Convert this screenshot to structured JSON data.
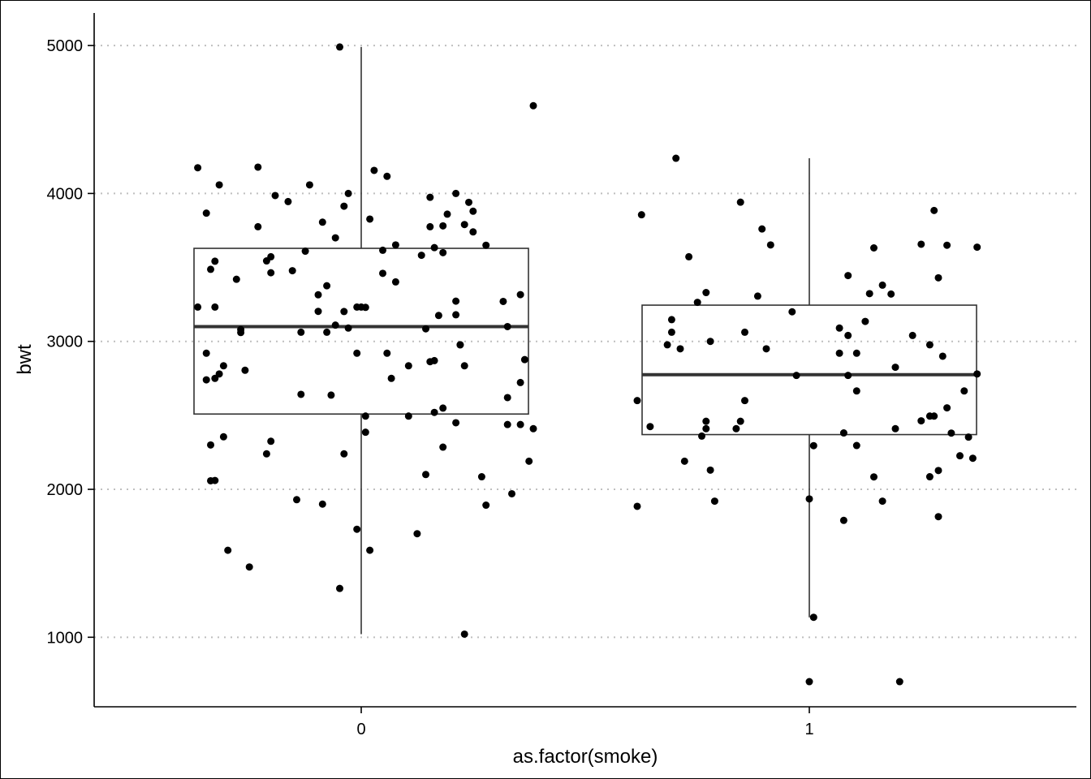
{
  "chart_data": {
    "type": "boxplot",
    "xlabel": "as.factor(smoke)",
    "ylabel": "bwt",
    "categories": [
      "0",
      "1"
    ],
    "ylim": [
      530,
      5220
    ],
    "yticks": [
      1000,
      2000,
      3000,
      4000,
      5000
    ],
    "grid": "horizontal-dotted",
    "legend": "none",
    "colors": {
      "points": "#000000",
      "box": "#333333",
      "grid": "#bfbfbf"
    },
    "boxes": [
      {
        "category": "0",
        "min": 1021,
        "q1": 2509,
        "median": 3100,
        "q3": 3629,
        "max": 4990
      },
      {
        "category": "1",
        "min": 1135,
        "q1": 2370,
        "median": 2775,
        "q3": 3245,
        "max": 4238
      }
    ],
    "points": [
      {
        "category": "0",
        "values": [
          [
            -0.38,
            4174
          ],
          [
            -0.38,
            3232
          ],
          [
            -0.36,
            3867
          ],
          [
            -0.35,
            3487
          ],
          [
            -0.34,
            3542
          ],
          [
            -0.34,
            3232
          ],
          [
            -0.36,
            2920
          ],
          [
            -0.36,
            2740
          ],
          [
            -0.34,
            2750
          ],
          [
            -0.32,
            2835
          ],
          [
            -0.33,
            2780
          ],
          [
            -0.35,
            2300
          ],
          [
            -0.32,
            2355
          ],
          [
            -0.35,
            2058
          ],
          [
            -0.34,
            2060
          ],
          [
            -0.31,
            1588
          ],
          [
            -0.33,
            4058
          ],
          [
            -0.29,
            3420
          ],
          [
            -0.28,
            3080
          ],
          [
            -0.28,
            3060
          ],
          [
            -0.27,
            2805
          ],
          [
            -0.26,
            1475
          ],
          [
            -0.24,
            4178
          ],
          [
            -0.24,
            3775
          ],
          [
            -0.22,
            3544
          ],
          [
            -0.21,
            3572
          ],
          [
            -0.21,
            3464
          ],
          [
            -0.22,
            2240
          ],
          [
            -0.21,
            2325
          ],
          [
            -0.2,
            3986
          ],
          [
            -0.17,
            3945
          ],
          [
            -0.16,
            3478
          ],
          [
            -0.15,
            1930
          ],
          [
            -0.14,
            3062
          ],
          [
            -0.14,
            2642
          ],
          [
            -0.13,
            3610
          ],
          [
            -0.12,
            4058
          ],
          [
            -0.1,
            3315
          ],
          [
            -0.1,
            3203
          ],
          [
            -0.09,
            3806
          ],
          [
            -0.09,
            1900
          ],
          [
            -0.08,
            3062
          ],
          [
            -0.08,
            3376
          ],
          [
            -0.07,
            2637
          ],
          [
            -0.06,
            3110
          ],
          [
            -0.06,
            3700
          ],
          [
            -0.05,
            1330
          ],
          [
            -0.05,
            4990
          ],
          [
            -0.04,
            3914
          ],
          [
            -0.04,
            3202
          ],
          [
            -0.04,
            2240
          ],
          [
            -0.03,
            3090
          ],
          [
            -0.03,
            4000
          ],
          [
            -0.01,
            2920
          ],
          [
            -0.01,
            1730
          ],
          [
            -0.01,
            3232
          ],
          [
            0.0,
            3232
          ],
          [
            0.01,
            3230
          ],
          [
            0.01,
            2495
          ],
          [
            0.01,
            2386
          ],
          [
            0.02,
            1588
          ],
          [
            0.02,
            3827
          ],
          [
            0.03,
            4156
          ],
          [
            0.05,
            3616
          ],
          [
            0.05,
            3460
          ],
          [
            0.06,
            2920
          ],
          [
            0.06,
            4116
          ],
          [
            0.07,
            2750
          ],
          [
            0.08,
            3402
          ],
          [
            0.08,
            3652
          ],
          [
            0.11,
            2835
          ],
          [
            0.11,
            2495
          ],
          [
            0.13,
            1700
          ],
          [
            0.14,
            3582
          ],
          [
            0.15,
            3085
          ],
          [
            0.15,
            2100
          ],
          [
            0.16,
            3775
          ],
          [
            0.16,
            2863
          ],
          [
            0.16,
            3974
          ],
          [
            0.17,
            2870
          ],
          [
            0.17,
            3634
          ],
          [
            0.17,
            2520
          ],
          [
            0.18,
            3175
          ],
          [
            0.19,
            2285
          ],
          [
            0.19,
            2549
          ],
          [
            0.19,
            3600
          ],
          [
            0.19,
            3781
          ],
          [
            0.2,
            3860
          ],
          [
            0.22,
            3180
          ],
          [
            0.22,
            3272
          ],
          [
            0.22,
            4000
          ],
          [
            0.22,
            2450
          ],
          [
            0.23,
            2977
          ],
          [
            0.23,
            2977
          ],
          [
            0.24,
            2835
          ],
          [
            0.24,
            1021
          ],
          [
            0.24,
            3790
          ],
          [
            0.25,
            3940
          ],
          [
            0.26,
            3880
          ],
          [
            0.26,
            3740
          ],
          [
            0.28,
            2085
          ],
          [
            0.29,
            1893
          ],
          [
            0.29,
            3650
          ],
          [
            0.33,
            3270
          ],
          [
            0.34,
            3100
          ],
          [
            0.34,
            2620
          ],
          [
            0.34,
            2438
          ],
          [
            0.35,
            1970
          ],
          [
            0.37,
            2438
          ],
          [
            0.37,
            2722
          ],
          [
            0.37,
            3316
          ],
          [
            0.38,
            2877
          ],
          [
            0.39,
            2190
          ],
          [
            0.4,
            2410
          ],
          [
            0.4,
            4593
          ]
        ]
      },
      {
        "category": "1",
        "values": [
          [
            -0.4,
            2600
          ],
          [
            -0.4,
            1885
          ],
          [
            -0.39,
            3856
          ],
          [
            -0.37,
            2424
          ],
          [
            -0.33,
            2977
          ],
          [
            -0.32,
            3062
          ],
          [
            -0.32,
            3147
          ],
          [
            -0.31,
            4238
          ],
          [
            -0.3,
            2950
          ],
          [
            -0.29,
            2190
          ],
          [
            -0.28,
            3572
          ],
          [
            -0.26,
            3264
          ],
          [
            -0.25,
            2360
          ],
          [
            -0.24,
            2410
          ],
          [
            -0.24,
            2460
          ],
          [
            -0.24,
            3330
          ],
          [
            -0.23,
            3000
          ],
          [
            -0.23,
            2130
          ],
          [
            -0.22,
            1920
          ],
          [
            -0.17,
            2410
          ],
          [
            -0.16,
            3941
          ],
          [
            -0.16,
            2460
          ],
          [
            -0.15,
            3062
          ],
          [
            -0.15,
            2600
          ],
          [
            -0.12,
            3306
          ],
          [
            -0.11,
            3760
          ],
          [
            -0.1,
            2950
          ],
          [
            -0.09,
            3652
          ],
          [
            -0.04,
            3200
          ],
          [
            -0.03,
            2770
          ],
          [
            0.0,
            1935
          ],
          [
            0.01,
            1135
          ],
          [
            0.0,
            700
          ],
          [
            0.01,
            2295
          ],
          [
            0.07,
            3090
          ],
          [
            0.07,
            2920
          ],
          [
            0.08,
            2381
          ],
          [
            0.08,
            1790
          ],
          [
            0.09,
            3040
          ],
          [
            0.09,
            2770
          ],
          [
            0.09,
            3445
          ],
          [
            0.11,
            2920
          ],
          [
            0.11,
            2296
          ],
          [
            0.11,
            2665
          ],
          [
            0.13,
            3135
          ],
          [
            0.14,
            3323
          ],
          [
            0.15,
            3632
          ],
          [
            0.15,
            2084
          ],
          [
            0.17,
            1920
          ],
          [
            0.17,
            3380
          ],
          [
            0.19,
            3320
          ],
          [
            0.2,
            2825
          ],
          [
            0.2,
            2410
          ],
          [
            0.21,
            700
          ],
          [
            0.24,
            3040
          ],
          [
            0.26,
            2463
          ],
          [
            0.26,
            3657
          ],
          [
            0.28,
            2495
          ],
          [
            0.28,
            2977
          ],
          [
            0.28,
            2085
          ],
          [
            0.29,
            2495
          ],
          [
            0.29,
            3885
          ],
          [
            0.3,
            2127
          ],
          [
            0.3,
            1815
          ],
          [
            0.3,
            3430
          ],
          [
            0.31,
            2900
          ],
          [
            0.32,
            3650
          ],
          [
            0.32,
            2551
          ],
          [
            0.33,
            2380
          ],
          [
            0.35,
            2227
          ],
          [
            0.36,
            2665
          ],
          [
            0.37,
            2353
          ],
          [
            0.38,
            2210
          ],
          [
            0.39,
            3637
          ],
          [
            0.39,
            2780
          ]
        ]
      }
    ]
  }
}
